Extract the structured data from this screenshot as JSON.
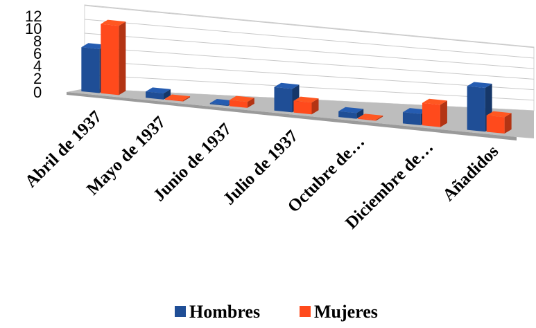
{
  "chart_data": {
    "type": "bar",
    "categories": [
      "Abril de 1937",
      "Mayo de 1937",
      "Junio de 1937",
      "Julio de 1937",
      "Octubre de…",
      "Diciembre de…",
      "Añadidos"
    ],
    "series": [
      {
        "name": "Hombres",
        "values": [
          7,
          1,
          0,
          4,
          1,
          2,
          8
        ],
        "color": "#1F4E96"
      },
      {
        "name": "Mujeres",
        "values": [
          11,
          0,
          1,
          2,
          0,
          4,
          3
        ],
        "color": "#FF4A1C"
      }
    ],
    "yticks": [
      "12",
      "10",
      "8",
      "6",
      "4",
      "2",
      "0"
    ],
    "ylim": [
      0,
      12
    ],
    "grid": true,
    "legend": "bottom"
  }
}
